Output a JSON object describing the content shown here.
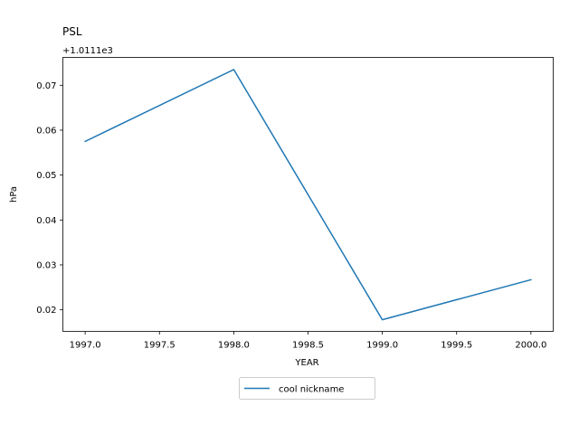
{
  "chart_data": {
    "type": "line",
    "title": "PSL",
    "xlabel": "YEAR",
    "ylabel": "hPa",
    "y_offset_label": "+1.0111e3",
    "xlim": [
      1996.85,
      2000.15
    ],
    "ylim": [
      0.0152,
      0.0762
    ],
    "xticks": [
      1997.0,
      1997.5,
      1998.0,
      1998.5,
      1999.0,
      1999.5,
      2000.0
    ],
    "xtick_labels": [
      "1997.0",
      "1997.5",
      "1998.0",
      "1998.5",
      "1999.0",
      "1999.5",
      "2000.0"
    ],
    "yticks": [
      0.02,
      0.03,
      0.04,
      0.05,
      0.06,
      0.07
    ],
    "ytick_labels": [
      "0.02",
      "0.03",
      "0.04",
      "0.05",
      "0.06",
      "0.07"
    ],
    "grid": false,
    "legend_position": "below",
    "series": [
      {
        "name": "cool nickname",
        "color": "#1f77b4",
        "x": [
          1997,
          1998,
          1999,
          2000
        ],
        "y": [
          0.0575,
          0.0735,
          0.0178,
          0.0267
        ]
      }
    ]
  }
}
